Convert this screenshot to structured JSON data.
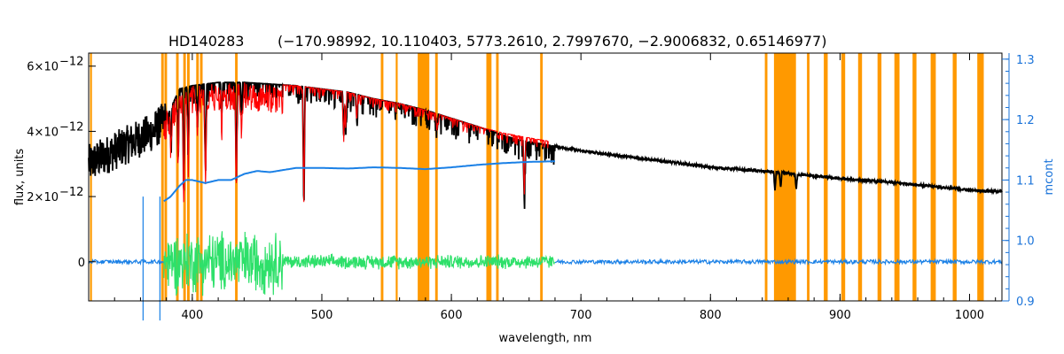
{
  "chart_data": {
    "type": "line",
    "title_star": "HD140283",
    "title_params": "(−170.98992, 10.110403, 5773.2610, 2.7997670, −2.9006832, 0.65146977)",
    "xlabel": "wavelength, nm",
    "ylabel": "flux, units",
    "ylabel_right": "mcont",
    "xlim": [
      320,
      1025
    ],
    "ylim": [
      -1.2,
      6.4
    ],
    "ylim_right": [
      0.9,
      1.31
    ],
    "x_ticks": [
      "400",
      "500",
      "600",
      "700",
      "800",
      "900",
      "1000"
    ],
    "x_tick_values": [
      400,
      500,
      600,
      700,
      800,
      900,
      1000
    ],
    "y_ticks": [
      {
        "value": 6,
        "mantissa": "6×10",
        "exp": "−12"
      },
      {
        "value": 4,
        "mantissa": "4×10",
        "exp": "−12"
      },
      {
        "value": 2,
        "mantissa": "2×10",
        "exp": "−12"
      },
      {
        "value": 0,
        "mantissa": "0",
        "exp": ""
      }
    ],
    "y_right_ticks": [
      "0.9",
      "1.0",
      "1.1",
      "1.2",
      "1.3"
    ],
    "y_right_tick_values": [
      0.9,
      1.0,
      1.1,
      1.2,
      1.3
    ],
    "observed_flux": {
      "color": "#000000",
      "x": [
        320,
        330,
        340,
        350,
        360,
        370,
        380,
        390,
        400,
        420,
        440,
        460,
        480,
        500,
        520,
        540,
        560,
        580,
        600,
        620,
        650,
        700,
        750,
        800,
        850,
        900,
        950,
        1000,
        1025
      ],
      "y": [
        3.0,
        3.2,
        3.4,
        3.6,
        3.8,
        4.0,
        4.4,
        5.3,
        5.4,
        5.5,
        5.5,
        5.45,
        5.4,
        5.3,
        5.2,
        5.0,
        4.85,
        4.65,
        4.4,
        4.15,
        3.75,
        3.4,
        3.15,
        2.9,
        2.75,
        2.55,
        2.4,
        2.2,
        2.15
      ]
    },
    "model_flux": {
      "color": "#ff0000",
      "x": [
        378,
        390,
        400,
        420,
        440,
        460,
        480,
        500,
        520,
        540,
        560,
        580,
        600,
        620,
        640,
        660,
        675
      ],
      "y": [
        4.5,
        5.3,
        5.4,
        5.5,
        5.5,
        5.45,
        5.4,
        5.3,
        5.2,
        5.0,
        4.85,
        4.65,
        4.4,
        4.15,
        3.95,
        3.8,
        3.7
      ]
    },
    "absorption_lines": [
      {
        "x": 383.5,
        "depth": 1.2
      },
      {
        "x": 389,
        "depth": 2.0
      },
      {
        "x": 393.4,
        "depth": 3.5
      },
      {
        "x": 396.8,
        "depth": 2.2
      },
      {
        "x": 404,
        "depth": 1.3
      },
      {
        "x": 410.2,
        "depth": 2.8
      },
      {
        "x": 422.7,
        "depth": 1.0
      },
      {
        "x": 434,
        "depth": 3.0
      },
      {
        "x": 438,
        "depth": 1.0
      },
      {
        "x": 486.1,
        "depth": 3.7
      },
      {
        "x": 516.9,
        "depth": 1.5
      },
      {
        "x": 518.4,
        "depth": 1.2
      },
      {
        "x": 527,
        "depth": 0.8
      },
      {
        "x": 589,
        "depth": 0.5
      },
      {
        "x": 656.3,
        "depth": 1.9
      },
      {
        "x": 849.8,
        "depth": 0.6
      },
      {
        "x": 854.2,
        "depth": 0.5
      },
      {
        "x": 866.2,
        "depth": 0.5
      }
    ],
    "mcont": {
      "color": "#1a80e6",
      "x": [
        378,
        383,
        390,
        395,
        400,
        410,
        420,
        430,
        440,
        450,
        460,
        480,
        500,
        520,
        540,
        560,
        580,
        600,
        620,
        640,
        660,
        680
      ],
      "y": [
        1.065,
        1.072,
        1.09,
        1.1,
        1.1,
        1.095,
        1.1,
        1.1,
        1.11,
        1.115,
        1.113,
        1.12,
        1.12,
        1.119,
        1.121,
        1.12,
        1.118,
        1.121,
        1.125,
        1.128,
        1.13,
        1.131
      ]
    },
    "residuals": {
      "color": "#2ee06a",
      "x_range": [
        378,
        680
      ],
      "amplitude_large": 1.1,
      "amplitude_small": 0.25,
      "large_region": [
        378,
        470
      ]
    },
    "residuals_outside": {
      "color": "#1a80e6",
      "x_ranges": [
        [
          320,
          378
        ],
        [
          680,
          1025
        ]
      ],
      "spike_x": [
        362,
        375
      ],
      "spike_amplitude": 2.0
    },
    "masked_regions": {
      "color": "#ff9900",
      "bands": [
        [
          321,
          322.5
        ],
        [
          376,
          378
        ],
        [
          378.5,
          380.5
        ],
        [
          387.5,
          389.5
        ],
        [
          393,
          395
        ],
        [
          396,
          398
        ],
        [
          403,
          405
        ],
        [
          406,
          408
        ],
        [
          433,
          435
        ],
        [
          545.5,
          547.5
        ],
        [
          557,
          558.5
        ],
        [
          574,
          583
        ],
        [
          587.5,
          589.5
        ],
        [
          627,
          631
        ],
        [
          634.5,
          636.5
        ],
        [
          668.5,
          670.5
        ],
        [
          842,
          844
        ],
        [
          849,
          866
        ],
        [
          874.5,
          876.5
        ],
        [
          887.5,
          890.5
        ],
        [
          901,
          904
        ],
        [
          914,
          917
        ],
        [
          929,
          932
        ],
        [
          942,
          946
        ],
        [
          956,
          959
        ],
        [
          970,
          974
        ],
        [
          987,
          990
        ],
        [
          1006,
          1011
        ]
      ]
    }
  }
}
